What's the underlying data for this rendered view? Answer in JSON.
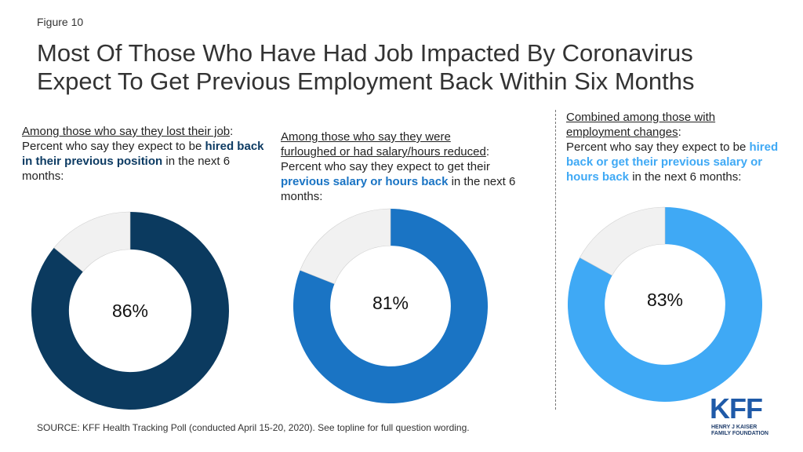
{
  "figure_label": "Figure 10",
  "title_line1": "Most Of Those Who Have Had Job Impacted By Coronavirus",
  "title_line2": "Expect To Get Previous Employment Back Within Six Months",
  "source": "SOURCE: KFF Health Tracking Poll (conducted April 15-20, 2020). See topline for full question wording.",
  "logo": {
    "text": "KFF",
    "sub_line1": "HENRY J KAISER",
    "sub_line2": "FAMILY FOUNDATION"
  },
  "remainder_color": "#f1f1f1",
  "panels": [
    {
      "cap_u1": "Among those who say they lost their job",
      "cap_tail": ":",
      "cap_pre": "Percent who say they expect to be ",
      "cap_em": "hired back in their previous position",
      "cap_post": " in the next 6 months:",
      "emph_color": "#0d3b63"
    },
    {
      "cap_u1": "Among those who say they were",
      "cap_u2": "furloughed or had salary/hours reduced",
      "cap_tail": ":",
      "cap_pre": "Percent who say they expect to get their ",
      "cap_em": "previous salary or hours back",
      "cap_post": " in the next 6 months:",
      "emph_color": "#1a74c4"
    },
    {
      "cap_u1": "Combined among those with",
      "cap_u2": "employment changes",
      "cap_tail": ":",
      "cap_pre": "Percent who say they expect to be ",
      "cap_em": "hired back or get their previous salary or hours back",
      "cap_post": " in the next 6 months:",
      "emph_color": "#3fa9f5"
    }
  ],
  "chart_data": [
    {
      "type": "pie",
      "values": [
        86,
        14
      ],
      "center_label": "86%",
      "colors": [
        "#0b3a5f",
        "#f1f1f1"
      ]
    },
    {
      "type": "pie",
      "values": [
        81,
        19
      ],
      "center_label": "81%",
      "colors": [
        "#1a74c4",
        "#f1f1f1"
      ]
    },
    {
      "type": "pie",
      "values": [
        83,
        17
      ],
      "center_label": "83%",
      "colors": [
        "#3fa9f5",
        "#f1f1f1"
      ]
    }
  ]
}
